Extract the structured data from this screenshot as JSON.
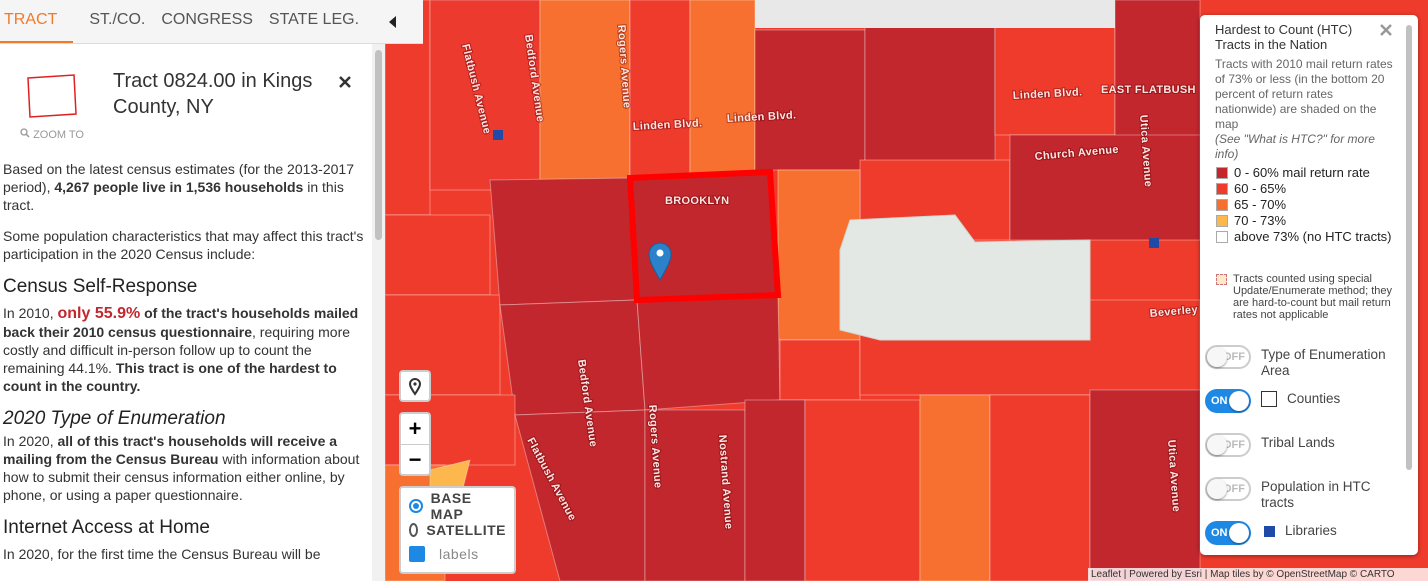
{
  "tabs": [
    "TRACT",
    "ST./CO.",
    "CONGRESS",
    "STATE LEG."
  ],
  "panel": {
    "title": "Tract 0824.00 in Kings County, NY",
    "zoom": "ZOOM TO",
    "intro": [
      "Based on the latest census estimates (for the 2013-2017 period), ",
      "4,267 people live in 1,536 households",
      " in this tract."
    ],
    "lead": "Some population characteristics that may affect this tract's participation in the 2020 Census include:",
    "sections": [
      {
        "heading": "Census Self-Response",
        "text": [
          "In 2010, ",
          "only 55.9%",
          " of the tract's households mailed back their 2010 census questionnaire",
          ", requiring more costly and difficult in-person follow up to count the remaining 44.1%. ",
          "This tract is one of the hardest to count in the country."
        ]
      },
      {
        "heading": "2020 Type of Enumeration",
        "text": [
          "In 2020, ",
          "all of this tract's households will receive a mailing from the Census Bureau",
          " with information about how to submit their census information either online, by phone, or using a paper questionnaire."
        ]
      },
      {
        "heading": "Internet Access at Home",
        "text": [
          "In 2020, for the first time the Census Bureau will be"
        ]
      }
    ]
  },
  "map": {
    "streets": [
      "Flatbush Avenue",
      "Bedford Avenue",
      "Rogers Avenue",
      "Linden Blvd.",
      "Linden Blvd.",
      "Linden Blvd.",
      "EAST FLATBUSH",
      "Church Avenue",
      "BROOKLYN",
      "Utica Avenue",
      "Bedford Avenue",
      "Rogers Avenue",
      "Nostrand Avenue",
      "Flatbush Avenue",
      "Beverley Road",
      "Utica Avenue"
    ],
    "zoom_in": "+",
    "zoom_out": "−",
    "base_options": [
      "BASE MAP",
      "SATELLITE"
    ],
    "labels_option": "labels",
    "attribution": "Leaflet | Powered by Esri | Map tiles by © OpenStreetMap © CARTO"
  },
  "legend": {
    "title": "Hardest to Count (HTC) Tracts in the Nation",
    "description": "Tracts with 2010 mail return rates of 73% or less (in the bottom 20 percent of return rates nationwide) are shaded on the map",
    "note": "(See \"What is HTC?\" for more info)",
    "items": [
      {
        "label": "0 - 60% mail return rate",
        "color": "#c1272d"
      },
      {
        "label": "60 - 65%",
        "color": "#ef3b2c"
      },
      {
        "label": "65 - 70%",
        "color": "#f7702f"
      },
      {
        "label": "70 - 73%",
        "color": "#fcb74d"
      },
      {
        "label": "above 73% (no HTC tracts)",
        "color": "#ffffff"
      }
    ],
    "special": "Tracts counted using special Update/Enumerate method; they are hard-to-count but mail return rates not applicable",
    "toggles": [
      {
        "state": "OFF",
        "label": "Type of Enumeration Area"
      },
      {
        "state": "ON",
        "label": "Counties"
      },
      {
        "state": "OFF",
        "label": "Tribal Lands"
      },
      {
        "state": "OFF",
        "label": "Population in HTC tracts"
      },
      {
        "state": "ON",
        "label": "Libraries"
      }
    ]
  }
}
